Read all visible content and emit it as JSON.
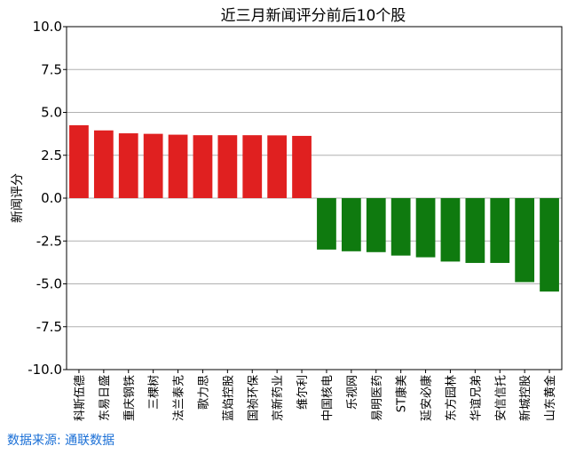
{
  "chart_data": {
    "type": "bar",
    "title": "近三月新闻评分前后10个股",
    "ylabel": "新闻评分",
    "xlabel": "",
    "ylim": [
      -10.0,
      10.0
    ],
    "yticks": [
      "10.0",
      "7.5",
      "5.0",
      "2.5",
      "0.0",
      "-2.5",
      "-5.0",
      "-7.5",
      "-10.0"
    ],
    "grid": "horizontal",
    "categories": [
      "科斯伍德",
      "东易日盛",
      "重庆钢铁",
      "三棵树",
      "法兰泰克",
      "歌力思",
      "蓝焰控股",
      "国祯环保",
      "京新药业",
      "维尔利",
      "中国核电",
      "乐视网",
      "易明医药",
      "ST康美",
      "延安必康",
      "东方园林",
      "华谊兄弟",
      "安信信托",
      "新城控股",
      "山东黄金"
    ],
    "values": [
      4.25,
      3.95,
      3.78,
      3.75,
      3.7,
      3.67,
      3.67,
      3.67,
      3.66,
      3.63,
      -3.0,
      -3.1,
      -3.15,
      -3.35,
      -3.45,
      -3.7,
      -3.78,
      -3.78,
      -4.9,
      -5.45
    ],
    "colors": {
      "positive": "#e02020",
      "negative": "#0f7a0f"
    }
  },
  "source_text": "数据来源: 通联数据"
}
